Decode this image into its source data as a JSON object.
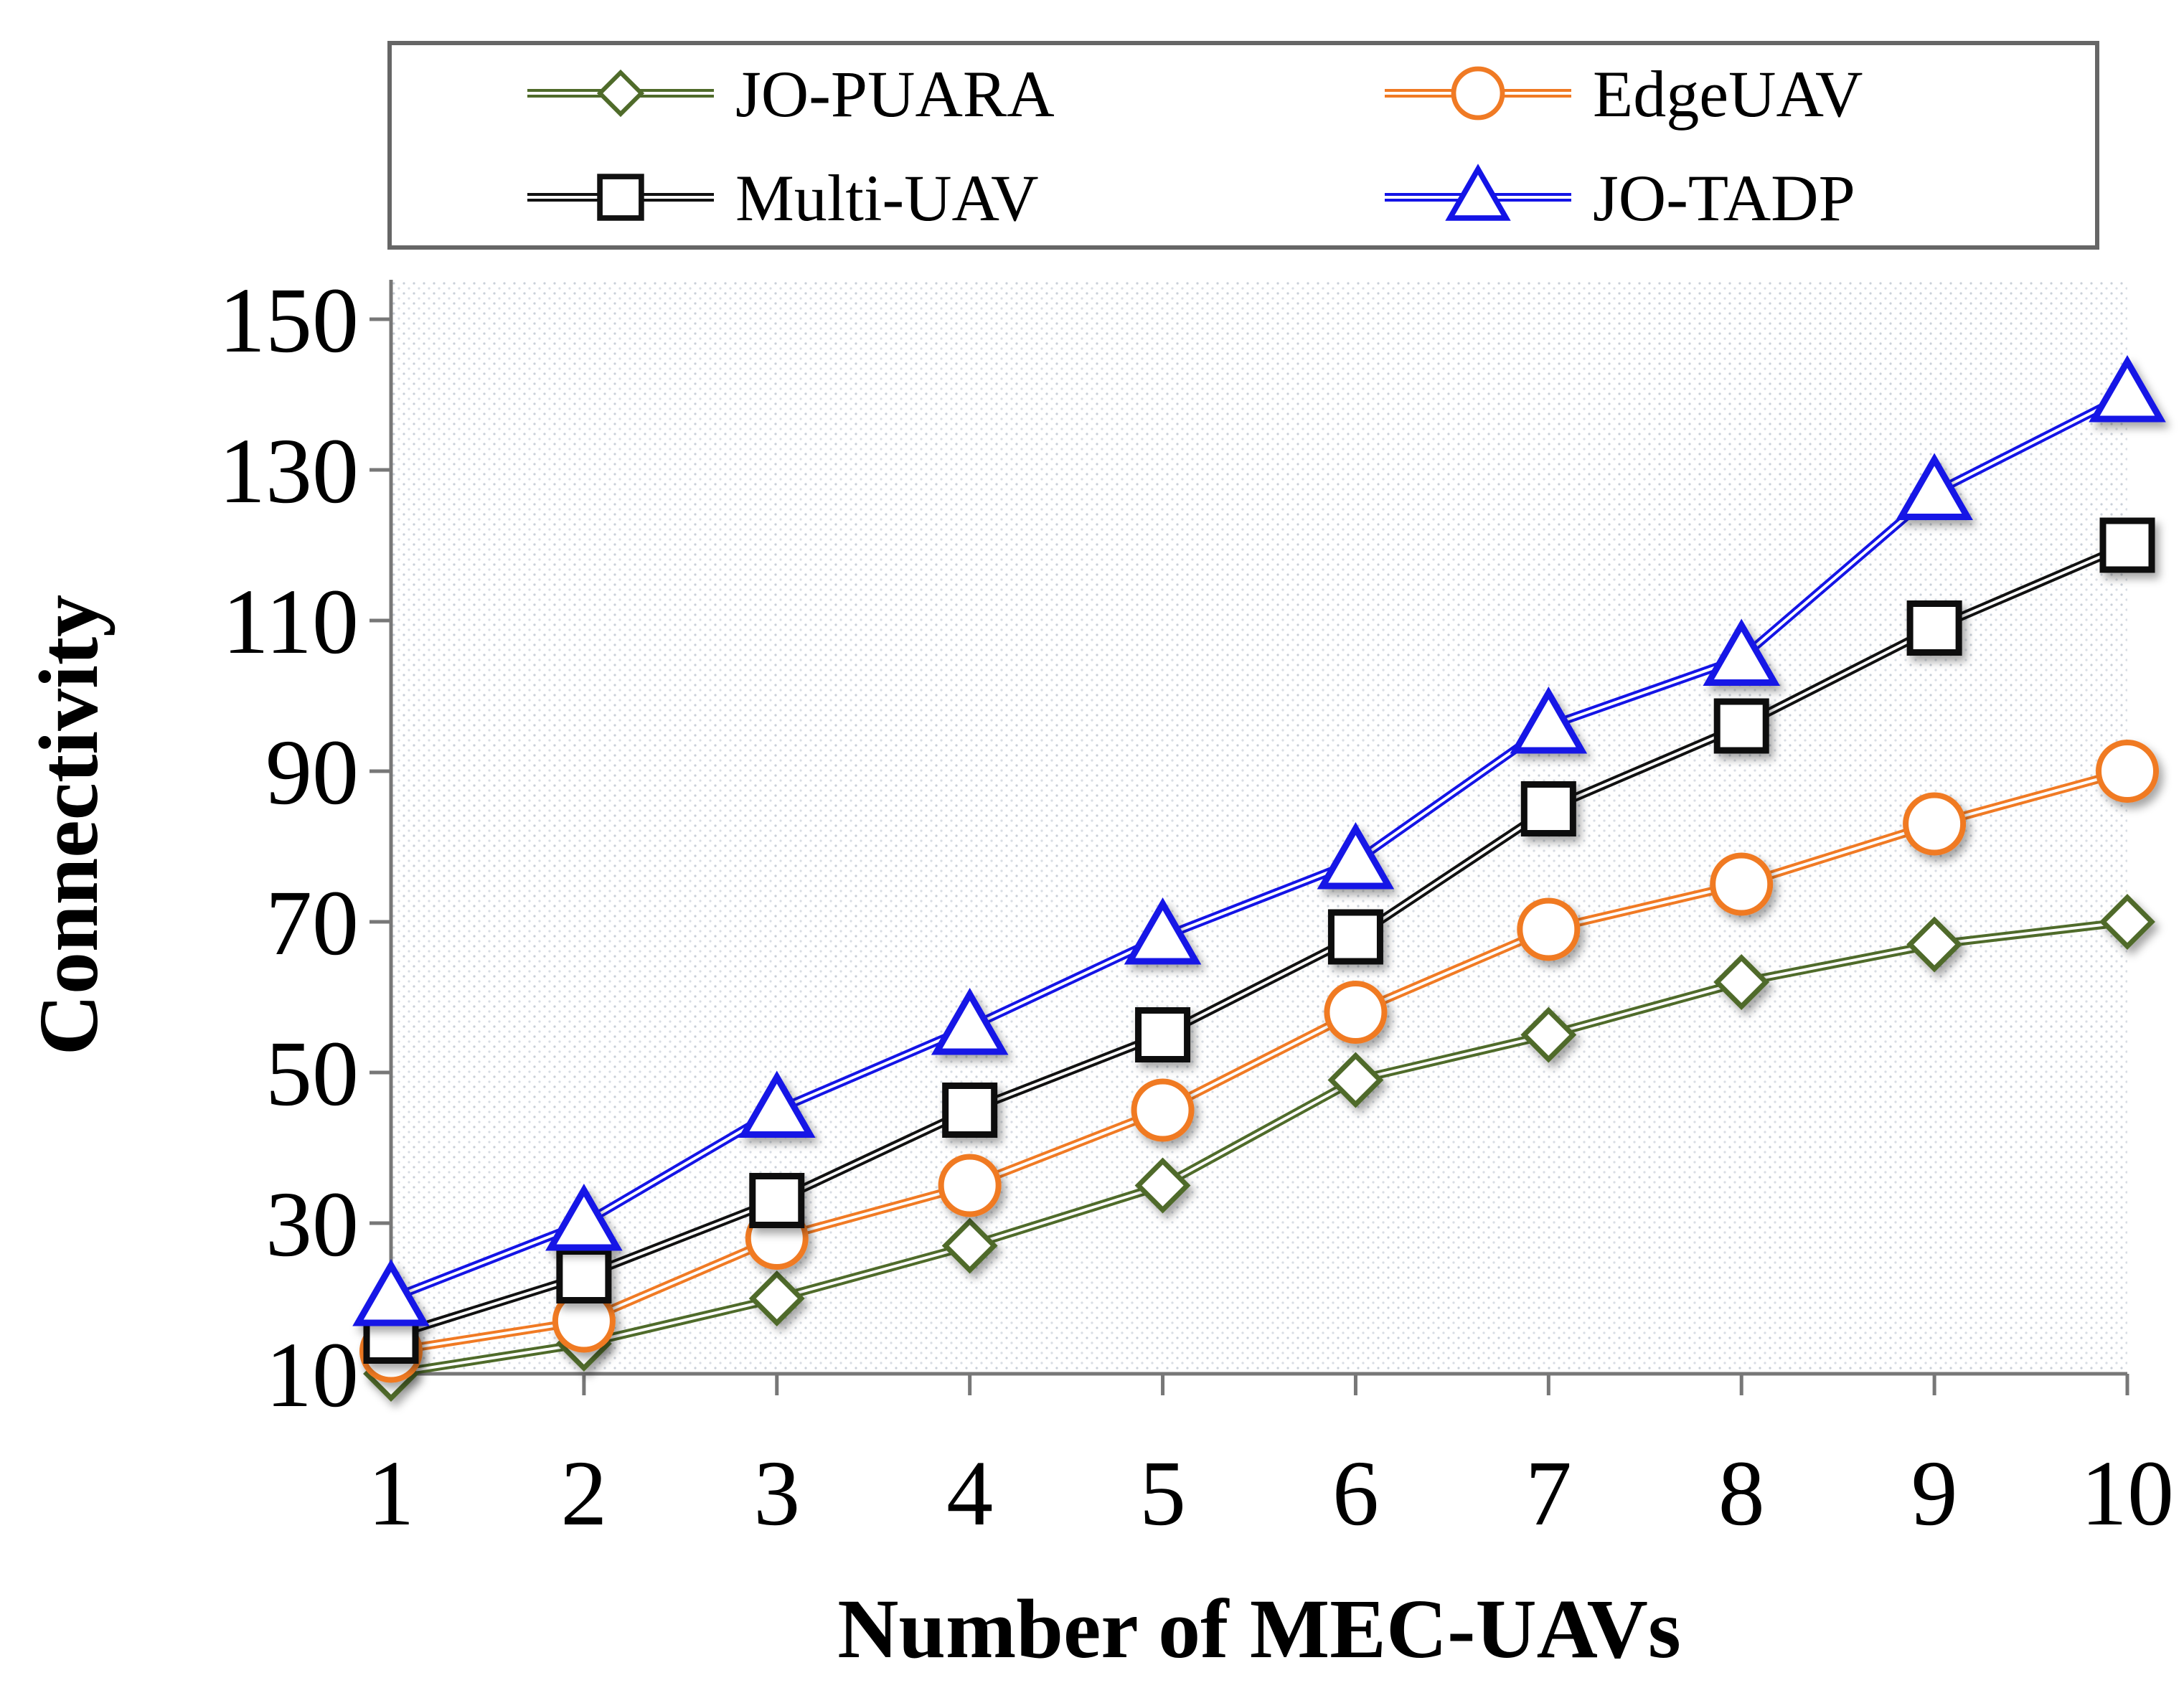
{
  "chart_data": {
    "type": "line",
    "title": "",
    "xlabel": "Number of MEC-UAVs",
    "ylabel": "Connectivity",
    "x": [
      1,
      2,
      3,
      4,
      5,
      6,
      7,
      8,
      9,
      10
    ],
    "xlim": [
      1,
      10
    ],
    "ylim": [
      10,
      150
    ],
    "yticks": [
      10,
      30,
      50,
      70,
      90,
      110,
      130,
      150
    ],
    "grid": false,
    "legend_placement": "top",
    "series": [
      {
        "name": "JO-PUARA",
        "marker": "diamond",
        "color": "#4f6b2a",
        "values": [
          10,
          14,
          20,
          27,
          35,
          49,
          55,
          62,
          67,
          70
        ]
      },
      {
        "name": "EdgeUAV",
        "marker": "circle",
        "color": "#f07a24",
        "values": [
          13,
          17,
          28,
          35,
          45,
          58,
          69,
          75,
          83,
          90
        ]
      },
      {
        "name": "Multi-UAV",
        "marker": "square",
        "color": "#111111",
        "values": [
          15,
          23,
          33,
          45,
          55,
          68,
          85,
          96,
          109,
          120
        ]
      },
      {
        "name": "JO-TADP",
        "marker": "triangle",
        "color": "#1414e6",
        "values": [
          20,
          30,
          45,
          56,
          68,
          78,
          96,
          105,
          127,
          140
        ]
      }
    ]
  }
}
